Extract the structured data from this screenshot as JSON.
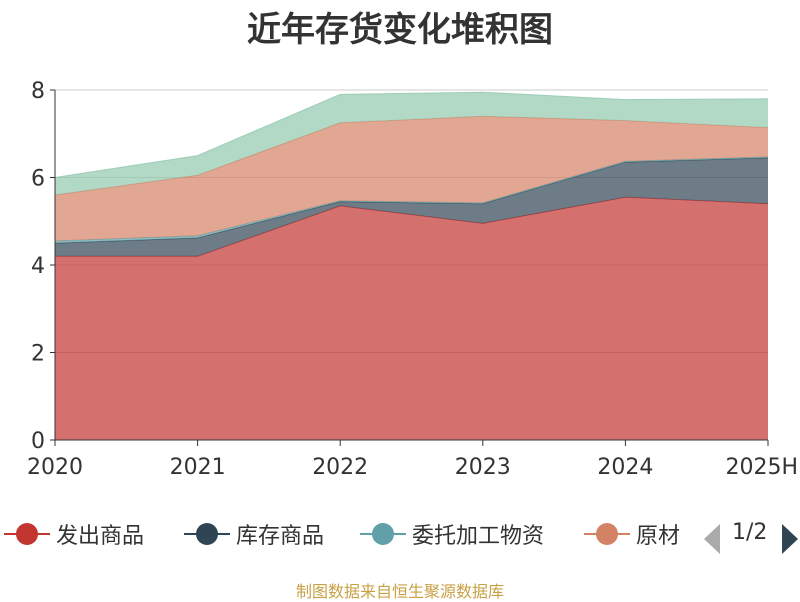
{
  "colors": {
    "goods_shipped": "#c23531",
    "inventory_goods": "#2f4554",
    "consigned_processing": "#61a0a8",
    "raw_materials": "#d48265",
    "fifth_series": "#91c7ae",
    "axis": "#333333",
    "grid": "#cccccc",
    "pager_inactive": "#aaaaaa",
    "pager_active": "#2f4554",
    "source_note": "#c8a146"
  },
  "chart_data": {
    "type": "area",
    "stacked": true,
    "title": "近年存货变化堆积图",
    "xlabel": "",
    "ylabel": "",
    "x": [
      "2020",
      "2021",
      "2022",
      "2023",
      "2024",
      "2025H"
    ],
    "ylim": [
      0,
      8
    ],
    "yticks": [
      0,
      2,
      4,
      6,
      8
    ],
    "grid": true,
    "series": [
      {
        "name": "发出商品",
        "color_key": "goods_shipped",
        "values": [
          4.2,
          4.2,
          5.35,
          4.95,
          5.55,
          5.4
        ]
      },
      {
        "name": "库存商品",
        "color_key": "inventory_goods",
        "values": [
          0.3,
          0.42,
          0.1,
          0.45,
          0.8,
          1.05
        ]
      },
      {
        "name": "委托加工物资",
        "color_key": "consigned_processing",
        "values": [
          0.05,
          0.05,
          0.02,
          0.02,
          0.02,
          0.02
        ]
      },
      {
        "name": "原材料",
        "color_key": "raw_materials",
        "values": [
          1.05,
          1.38,
          1.78,
          1.98,
          0.93,
          0.67
        ]
      },
      {
        "name": "",
        "color_key": "fifth_series",
        "values": [
          0.4,
          0.45,
          0.65,
          0.55,
          0.48,
          0.66
        ]
      }
    ]
  },
  "legend": {
    "items": [
      "发出商品",
      "库存商品",
      "委托加工物资",
      "原材"
    ],
    "page_indicator": "1/2"
  },
  "source_note": "制图数据来自恒生聚源数据库"
}
